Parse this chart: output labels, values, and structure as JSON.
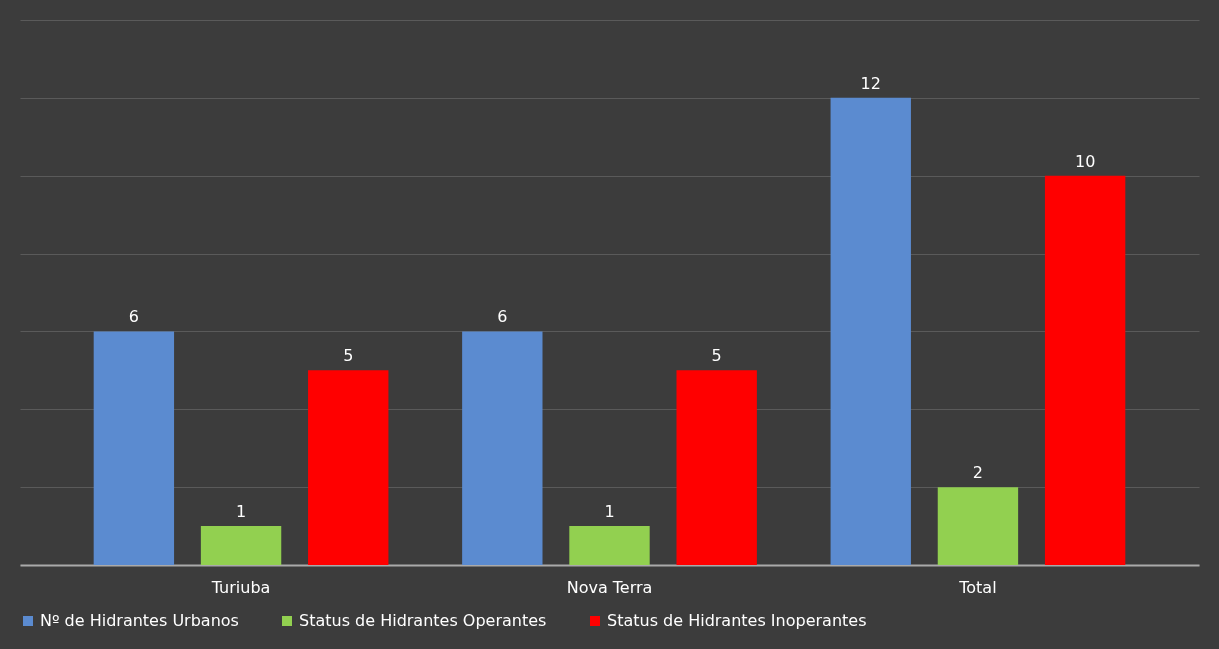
{
  "chart_data": {
    "type": "bar",
    "categories": [
      "Turiuba",
      "Nova Terra",
      "Total"
    ],
    "series": [
      {
        "name": "Nº de Hidrantes Urbanos",
        "color": "#5b8bd0",
        "values": [
          6,
          6,
          12
        ]
      },
      {
        "name": "Status de Hidrantes Operantes",
        "color": "#92d050",
        "values": [
          1,
          1,
          2
        ]
      },
      {
        "name": "Status de Hidrantes Inoperantes",
        "color": "#ff0000",
        "values": [
          5,
          5,
          10
        ]
      }
    ],
    "ylim": [
      0,
      14
    ],
    "yticks": [
      {
        "value": 0,
        "label": null
      },
      {
        "value": 2,
        "label": null
      },
      {
        "value": 4,
        "label": null
      },
      {
        "value": 6,
        "label": null
      },
      {
        "value": 8,
        "label": null
      },
      {
        "value": 10,
        "label": null
      },
      {
        "value": 12,
        "label": null
      },
      {
        "value": 14,
        "label": null
      }
    ],
    "grid": "y",
    "tick_labels": "x",
    "data_labels": true,
    "legend": "bottom"
  }
}
